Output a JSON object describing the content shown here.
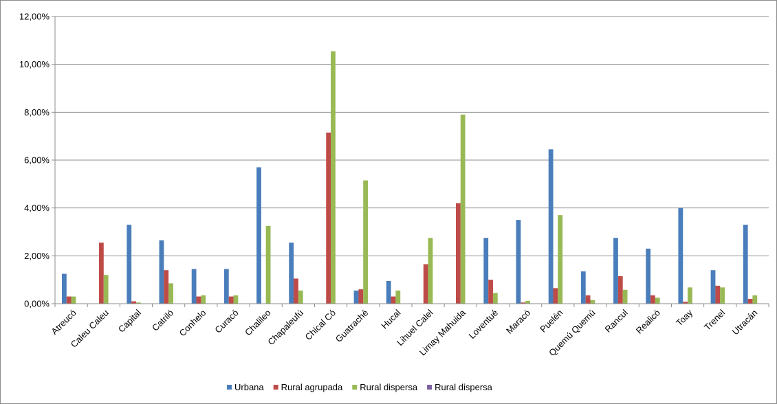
{
  "chart_data": {
    "type": "bar",
    "title": "",
    "xlabel": "",
    "ylabel": "",
    "ylim": [
      0,
      12
    ],
    "y_ticks": [
      "0,00%",
      "2,00%",
      "4,00%",
      "6,00%",
      "8,00%",
      "10,00%",
      "12,00%"
    ],
    "grid": true,
    "legend_position": "bottom",
    "categories": [
      "Atreucó",
      "Caleu Caleu",
      "Capital",
      "Catriló",
      "Conhelo",
      "Curacó",
      "Chalileo",
      "Chapaleufú",
      "Chical Có",
      "Guatraché",
      "Hucal",
      "Lihuel Calel",
      "Limay Mahuida",
      "Loventué",
      "Maracó",
      "Puelén",
      "Quemú Quemú",
      "Rancul",
      "Realicó",
      "Toay",
      "Trenel",
      "Utracán"
    ],
    "series": [
      {
        "name": "Urbana",
        "color": "#4a7ebb",
        "values": [
          1.25,
          0,
          3.3,
          2.65,
          1.45,
          1.45,
          5.7,
          2.55,
          0,
          0.55,
          0.95,
          0,
          0,
          2.75,
          3.5,
          6.45,
          1.35,
          2.75,
          2.3,
          4.0,
          1.4,
          3.3
        ]
      },
      {
        "name": "Rural agrupada",
        "color": "#be4b48",
        "values": [
          0.3,
          2.55,
          0.1,
          1.4,
          0.3,
          0.3,
          0,
          1.05,
          7.15,
          0.6,
          0.3,
          1.65,
          4.2,
          1.0,
          0.05,
          0.65,
          0.35,
          1.15,
          0.35,
          0.08,
          0.75,
          0.2
        ]
      },
      {
        "name": "Rural dispersa",
        "color": "#98b954",
        "values": [
          0.3,
          1.2,
          0.05,
          0.85,
          0.35,
          0.35,
          3.25,
          0.55,
          10.55,
          5.15,
          0.55,
          2.75,
          7.9,
          0.45,
          0.12,
          3.7,
          0.15,
          0.58,
          0.25,
          0.68,
          0.68,
          0.35
        ]
      },
      {
        "name": "Rural dispersa",
        "color": "#7d60a0",
        "values": [
          0,
          0,
          0,
          0,
          0,
          0,
          0,
          0,
          0,
          0,
          0,
          0,
          0,
          0,
          0,
          0,
          0,
          0,
          0,
          0,
          0,
          0
        ]
      }
    ]
  }
}
